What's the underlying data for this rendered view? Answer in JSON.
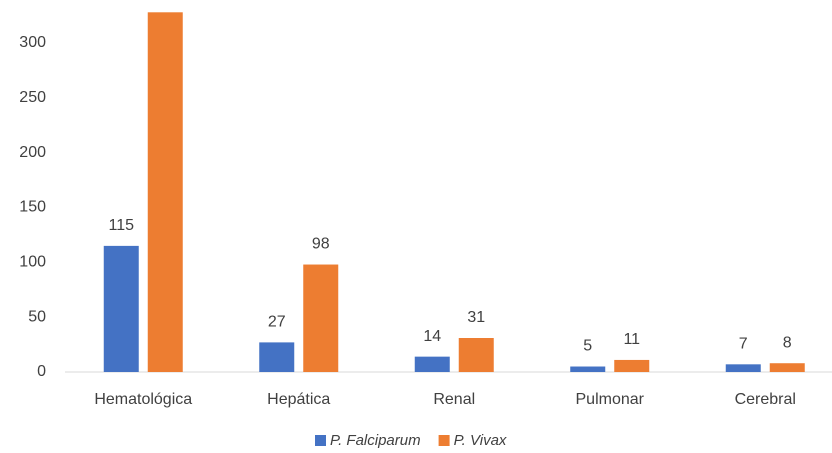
{
  "chart_data": {
    "type": "bar",
    "categories": [
      "Hematológica",
      "Hepática",
      "Renal",
      "Pulmonar",
      "Cerebral"
    ],
    "series": [
      {
        "name": "P. Falciparum",
        "color": "#4472c4",
        "values": [
          115,
          27,
          14,
          5,
          7
        ],
        "value_labels": [
          "115",
          "27",
          "14",
          "5",
          "7"
        ]
      },
      {
        "name": "P. Vivax",
        "color": "#ed7d31",
        "values": [
          328,
          98,
          31,
          11,
          8
        ],
        "value_labels": [
          null,
          "98",
          "31",
          "11",
          "8"
        ]
      }
    ],
    "ylim": [
      0,
      328
    ],
    "yticks": [
      0,
      50,
      100,
      150,
      200,
      250,
      300
    ],
    "grid": false,
    "legend": "bottom"
  }
}
